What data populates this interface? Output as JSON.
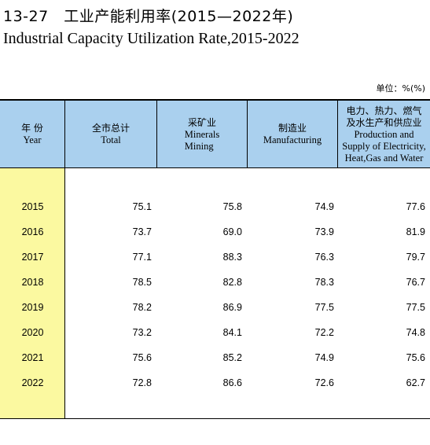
{
  "title_cn": "13-27　工业产能利用率(2015—2022年)",
  "title_en": "Industrial Capacity Utilization Rate,2015-2022",
  "unit": "单位：%(%)",
  "columns": [
    {
      "cn": "年 份",
      "en": "Year"
    },
    {
      "cn": "全市总计",
      "en": "Total"
    },
    {
      "cn": "采矿业",
      "en": "Minerals\nMining"
    },
    {
      "cn": "制造业",
      "en": "Manufacturing"
    },
    {
      "cn": "电力、热力、燃气\n及水生产和供应业",
      "en": "Production and\nSupply of Electricity,\nHeat,Gas and Water"
    }
  ],
  "rows": [
    {
      "year": "2015",
      "total": "75.1",
      "mining": "75.8",
      "manufacturing": "74.9",
      "utilities": "77.6"
    },
    {
      "year": "2016",
      "total": "73.7",
      "mining": "69.0",
      "manufacturing": "73.9",
      "utilities": "81.9"
    },
    {
      "year": "2017",
      "total": "77.1",
      "mining": "88.3",
      "manufacturing": "76.3",
      "utilities": "79.7"
    },
    {
      "year": "2018",
      "total": "78.5",
      "mining": "82.8",
      "manufacturing": "78.3",
      "utilities": "76.7"
    },
    {
      "year": "2019",
      "total": "78.2",
      "mining": "86.9",
      "manufacturing": "77.5",
      "utilities": "77.5"
    },
    {
      "year": "2020",
      "total": "73.2",
      "mining": "84.1",
      "manufacturing": "72.2",
      "utilities": "74.8"
    },
    {
      "year": "2021",
      "total": "75.6",
      "mining": "85.2",
      "manufacturing": "74.9",
      "utilities": "75.6"
    },
    {
      "year": "2022",
      "total": "72.8",
      "mining": "86.6",
      "manufacturing": "72.6",
      "utilities": "62.7"
    }
  ],
  "colors": {
    "header_bg": "#aad0ee",
    "year_bg": "#fbf9a0"
  }
}
